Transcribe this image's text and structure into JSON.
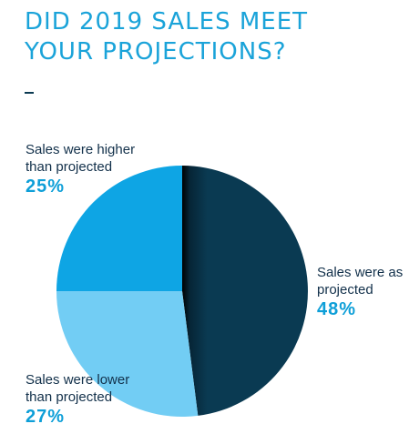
{
  "title_line1": "DID 2019 SALES MEET",
  "title_line2": "YOUR PROJECTIONS?",
  "colors": {
    "title": "#1aa3d9",
    "as_projected": "#0a3a52",
    "higher": "#0ea5e4",
    "lower": "#72cdf4",
    "percent_text": "#0e9fd8"
  },
  "labels": {
    "higher": {
      "line1": "Sales were higher",
      "line2": "than projected",
      "pct": "25%"
    },
    "as_projected": {
      "line1": "Sales were as",
      "line2": "projected",
      "pct": "48%"
    },
    "lower": {
      "line1": "Sales were lower",
      "line2": "than projected",
      "pct": "27%"
    }
  },
  "chart_data": {
    "type": "pie",
    "categories": [
      "Sales were as projected",
      "Sales were lower than projected",
      "Sales were higher than projected"
    ],
    "values": [
      48,
      27,
      25
    ],
    "unit": "%",
    "start": "12 o'clock",
    "direction": "clockwise"
  }
}
